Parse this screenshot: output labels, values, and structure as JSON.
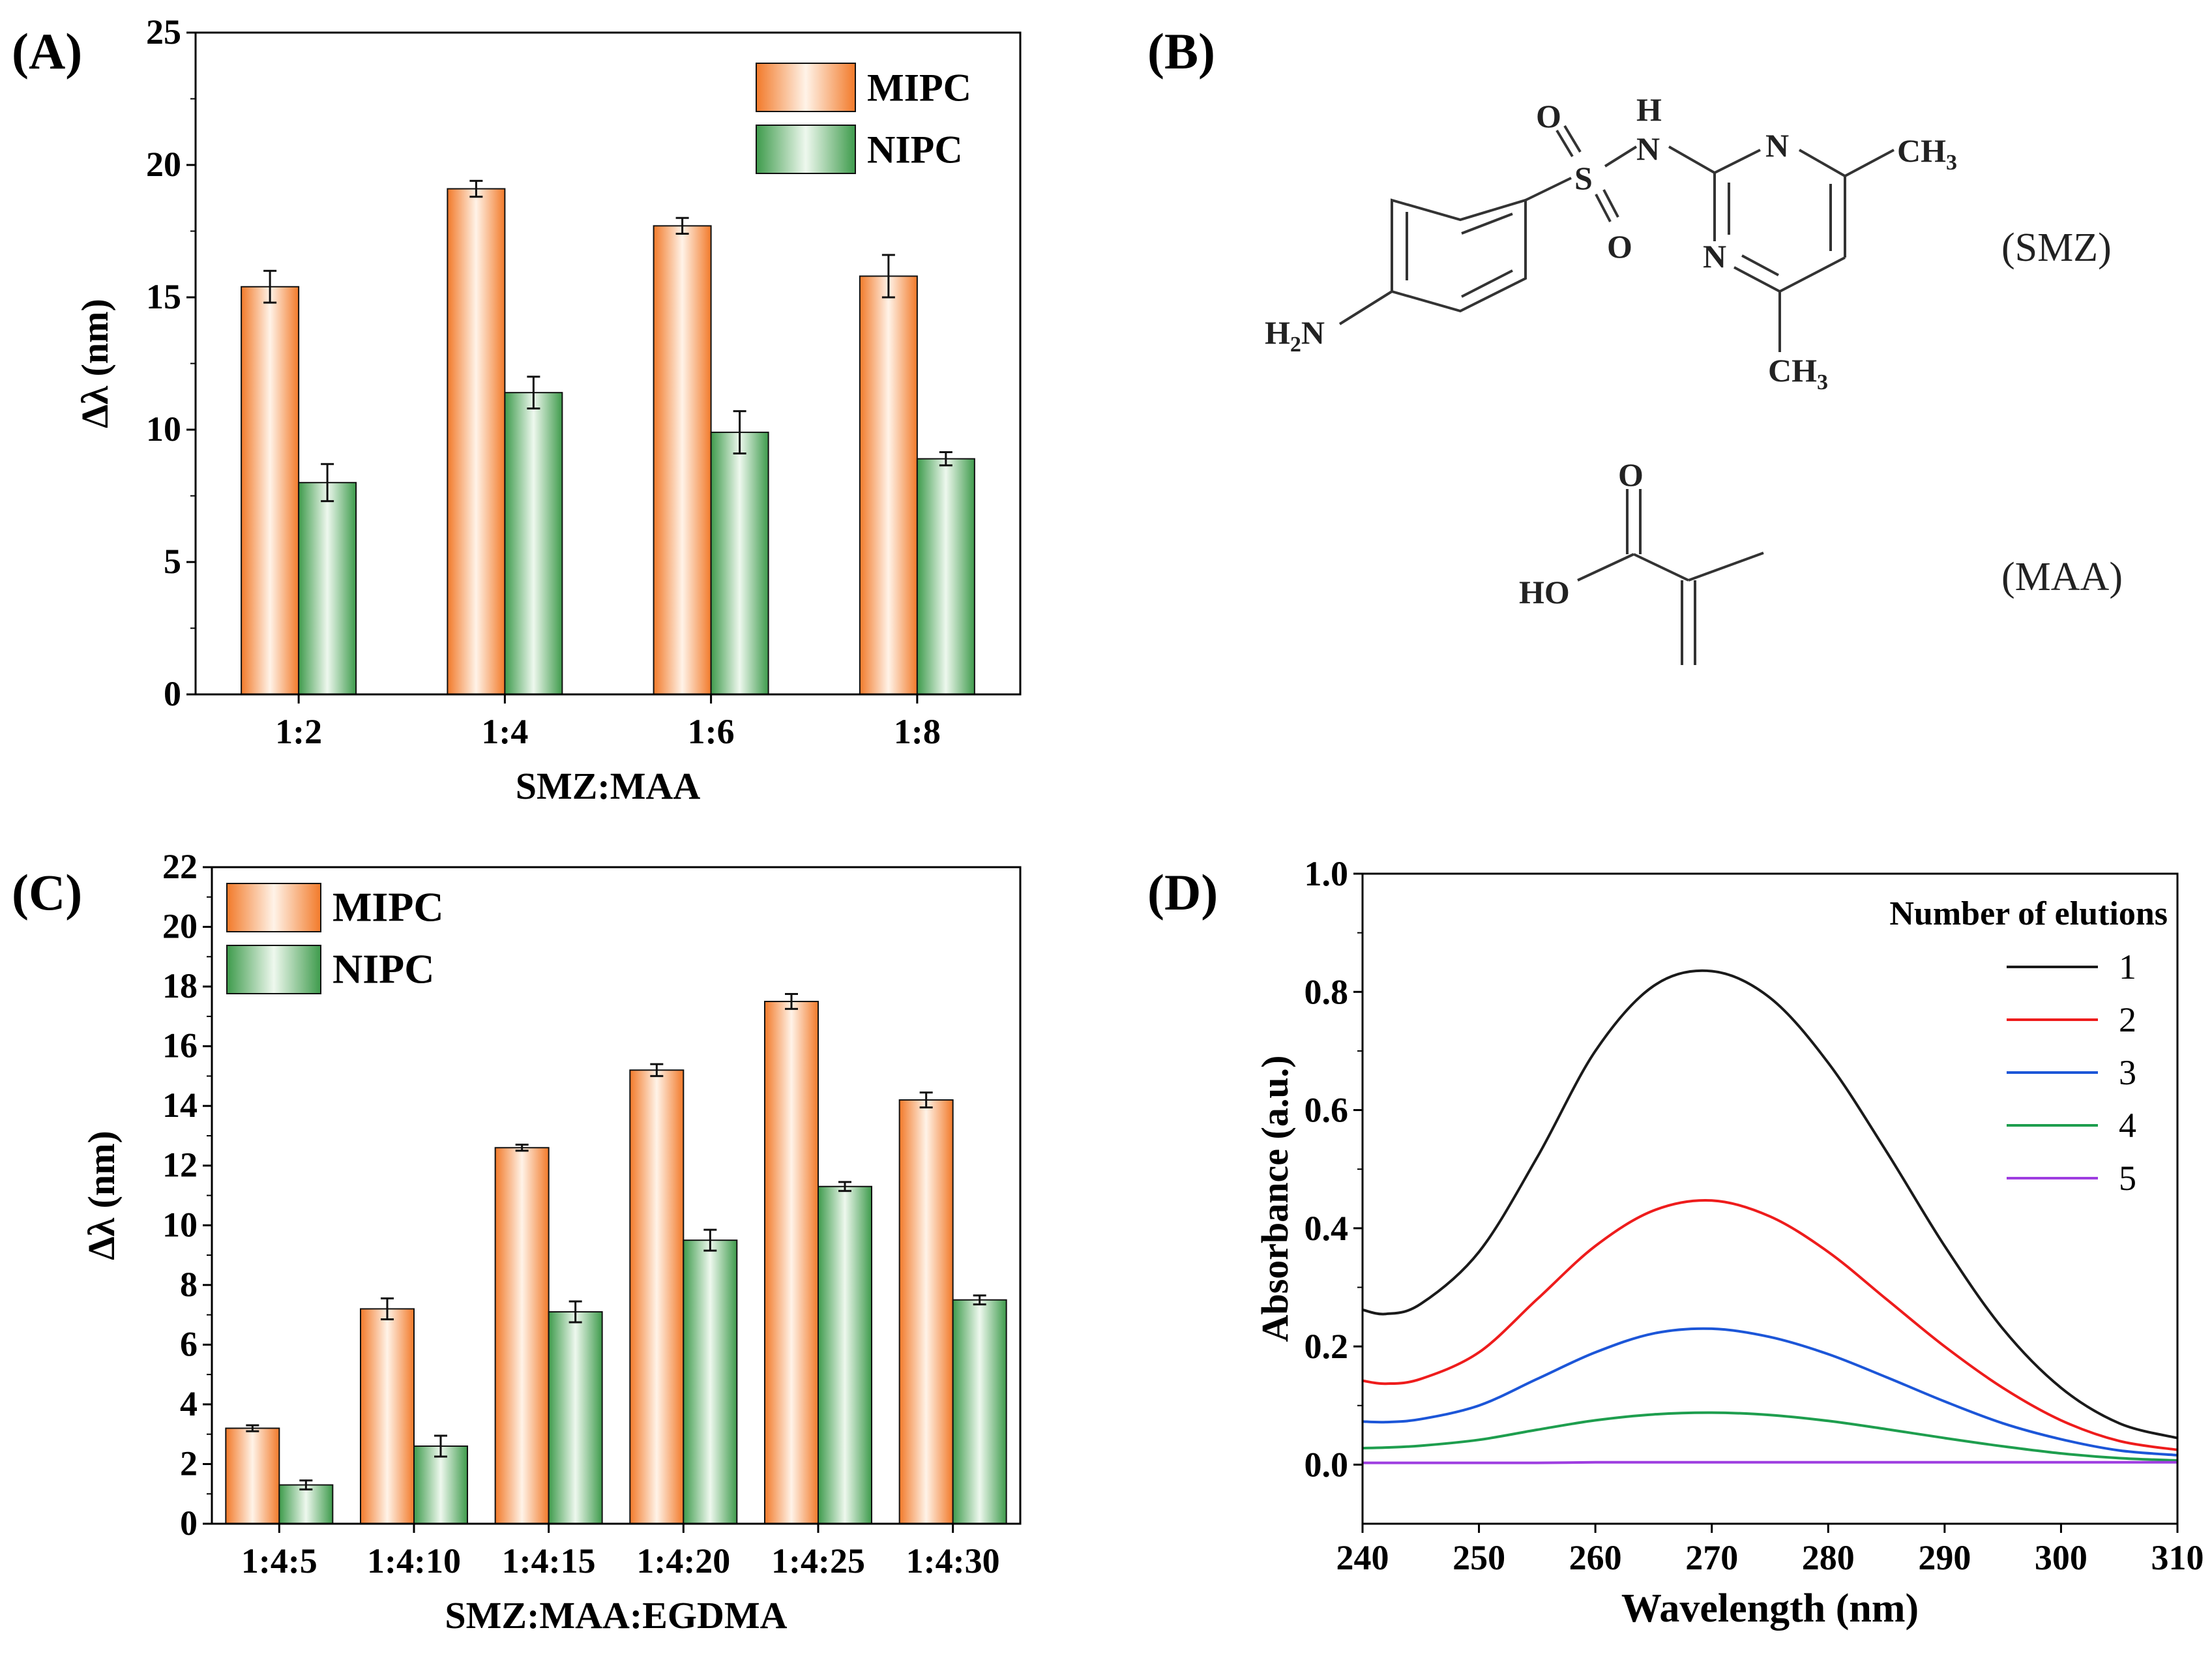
{
  "panels": {
    "a": {
      "label": "(A)"
    },
    "b": {
      "label": "(B)"
    },
    "c": {
      "label": "(C)"
    },
    "d": {
      "label": "(D)"
    }
  },
  "colors": {
    "mipc_edge": "#E8762C",
    "mipc_light": "#FFF1E4",
    "nipc_edge": "#2E8B40",
    "nipc_light": "#EAF6EA",
    "axis": "#000000"
  },
  "chart_data": [
    {
      "id": "A",
      "type": "bar",
      "title": "",
      "xlabel": "SMZ:MAA",
      "ylabel": "Δλ (nm)",
      "categories": [
        "1:2",
        "1:4",
        "1:6",
        "1:8"
      ],
      "ylim": [
        0,
        25
      ],
      "yticks": [
        0,
        5,
        10,
        15,
        20,
        25
      ],
      "legend": "top-right",
      "series": [
        {
          "name": "MIPC",
          "values": [
            15.4,
            19.1,
            17.7,
            15.8
          ],
          "errors": [
            0.6,
            0.3,
            0.3,
            0.8
          ]
        },
        {
          "name": "NIPC",
          "values": [
            8.0,
            11.4,
            9.9,
            8.9
          ],
          "errors": [
            0.7,
            0.6,
            0.8,
            0.25
          ]
        }
      ]
    },
    {
      "id": "C",
      "type": "bar",
      "title": "",
      "xlabel": "SMZ:MAA:EGDMA",
      "ylabel": "Δλ (nm)",
      "categories": [
        "1:4:5",
        "1:4:10",
        "1:4:15",
        "1:4:20",
        "1:4:25",
        "1:4:30"
      ],
      "ylim": [
        0,
        22
      ],
      "yticks": [
        0,
        2,
        4,
        6,
        8,
        10,
        12,
        14,
        16,
        18,
        20,
        22
      ],
      "legend": "top-left",
      "series": [
        {
          "name": "MIPC",
          "values": [
            3.2,
            7.2,
            12.6,
            15.2,
            17.5,
            14.2
          ],
          "errors": [
            0.1,
            0.35,
            0.1,
            0.2,
            0.25,
            0.25
          ]
        },
        {
          "name": "NIPC",
          "values": [
            1.3,
            2.6,
            7.1,
            9.5,
            11.3,
            7.5
          ],
          "errors": [
            0.15,
            0.35,
            0.35,
            0.35,
            0.15,
            0.15
          ]
        }
      ]
    },
    {
      "id": "D",
      "type": "line",
      "title": "",
      "xlabel": "Wavelength (nm)",
      "ylabel": "Absorbance (a.u.)",
      "xlim": [
        240,
        310
      ],
      "ylim": [
        -0.1,
        1.0
      ],
      "xticks": [
        240,
        250,
        260,
        270,
        280,
        290,
        300,
        310
      ],
      "yticks": [
        0.0,
        0.2,
        0.4,
        0.6,
        0.8,
        1.0
      ],
      "legend_title": "Number of elutions",
      "legend": "top-right",
      "x": [
        240,
        242,
        245,
        250,
        255,
        260,
        265,
        270,
        275,
        280,
        285,
        290,
        295,
        300,
        305,
        310
      ],
      "series": [
        {
          "name": "1",
          "color": "#1a1a1a",
          "values": [
            0.262,
            0.255,
            0.272,
            0.36,
            0.52,
            0.7,
            0.81,
            0.835,
            0.79,
            0.68,
            0.53,
            0.37,
            0.23,
            0.13,
            0.07,
            0.045
          ]
        },
        {
          "name": "2",
          "color": "#EE1C1C",
          "values": [
            0.142,
            0.137,
            0.145,
            0.19,
            0.28,
            0.37,
            0.43,
            0.447,
            0.42,
            0.36,
            0.28,
            0.2,
            0.13,
            0.075,
            0.04,
            0.025
          ]
        },
        {
          "name": "3",
          "color": "#1C56D8",
          "values": [
            0.073,
            0.072,
            0.077,
            0.1,
            0.145,
            0.19,
            0.222,
            0.23,
            0.216,
            0.187,
            0.148,
            0.107,
            0.07,
            0.043,
            0.024,
            0.016
          ]
        },
        {
          "name": "4",
          "color": "#1E9E4E",
          "values": [
            0.028,
            0.029,
            0.032,
            0.042,
            0.059,
            0.075,
            0.085,
            0.088,
            0.084,
            0.074,
            0.06,
            0.045,
            0.031,
            0.019,
            0.011,
            0.007
          ]
        },
        {
          "name": "5",
          "color": "#9E3DE0",
          "values": [
            0.003,
            0.003,
            0.003,
            0.003,
            0.003,
            0.004,
            0.004,
            0.004,
            0.004,
            0.004,
            0.004,
            0.004,
            0.004,
            0.004,
            0.004,
            0.004
          ]
        }
      ]
    }
  ],
  "structures": {
    "smz": {
      "name": "(SMZ)",
      "atoms": {
        "o_top": "O",
        "s": "S",
        "o_bot": "O",
        "nh_h": "H",
        "nh_n": "N",
        "n_ring1": "N",
        "n_ring2": "N",
        "ch3_top": "CH",
        "ch3_bot": "CH",
        "sub3": "3",
        "h2n_h": "H",
        "h2n_2": "2",
        "h2n_n": "N"
      }
    },
    "maa": {
      "name": "(MAA)",
      "atoms": {
        "o": "O",
        "ho": "HO"
      }
    }
  }
}
